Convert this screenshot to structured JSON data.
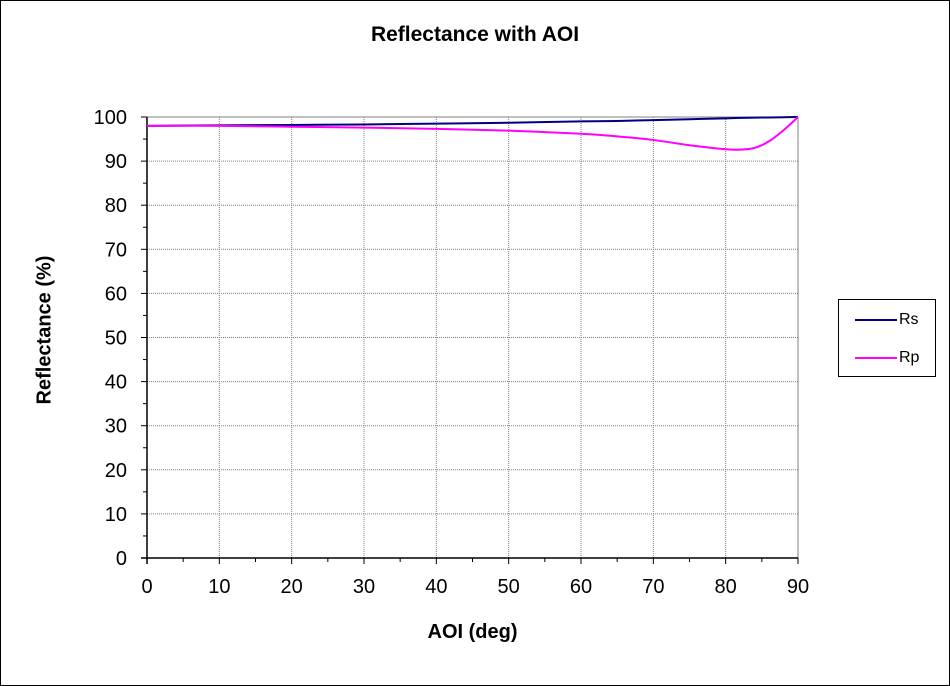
{
  "chart_data": {
    "type": "line",
    "title": "Reflectance with AOI",
    "xlabel": "AOI (deg)",
    "ylabel": "Reflectance (%)",
    "xlim": [
      0,
      90
    ],
    "ylim": [
      0,
      100
    ],
    "xticks": [
      0,
      10,
      20,
      30,
      40,
      50,
      60,
      70,
      80,
      90
    ],
    "yticks": [
      0,
      10,
      20,
      30,
      40,
      50,
      60,
      70,
      80,
      90,
      100
    ],
    "grid": true,
    "legend_position": "right",
    "x": [
      0,
      10,
      20,
      30,
      40,
      50,
      60,
      65,
      70,
      75,
      80,
      82,
      84,
      86,
      88,
      90
    ],
    "series": [
      {
        "name": "Rs",
        "color": "#000080",
        "values": [
          98.0,
          98.1,
          98.2,
          98.3,
          98.5,
          98.7,
          99.0,
          99.1,
          99.3,
          99.5,
          99.7,
          99.8,
          99.85,
          99.9,
          99.95,
          100.0
        ]
      },
      {
        "name": "Rp",
        "color": "#ff00ff",
        "values": [
          98.0,
          98.0,
          97.8,
          97.6,
          97.3,
          96.9,
          96.2,
          95.6,
          94.8,
          93.6,
          92.7,
          92.6,
          93.0,
          94.5,
          97.0,
          100.0
        ]
      }
    ]
  }
}
